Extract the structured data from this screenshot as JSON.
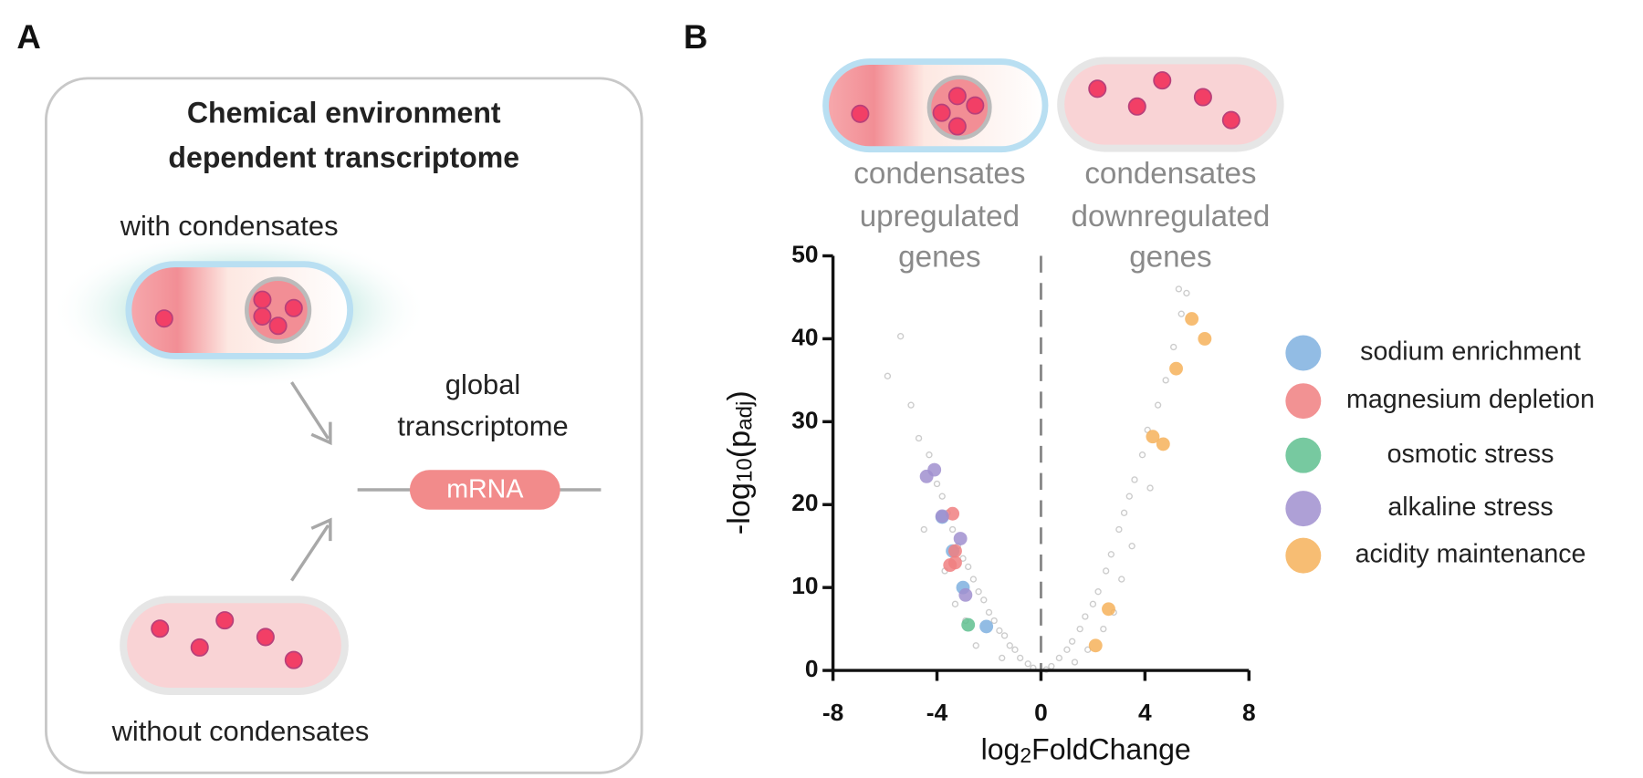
{
  "panel_a": {
    "letter": "A",
    "title": [
      "Chemical environment",
      "dependent transcriptome"
    ],
    "with_label": "with condensates",
    "without_label": "without condensates",
    "output_label": [
      "global",
      "transcriptome"
    ],
    "mrna": "mRNA"
  },
  "panel_b": {
    "letter": "B",
    "up_label": [
      "condensates",
      "upregulated",
      "genes"
    ],
    "down_label": [
      "condensates",
      "downregulated",
      "genes"
    ]
  },
  "chart_data": {
    "type": "scatter",
    "xlabel": [
      "log",
      "2",
      "FoldChange"
    ],
    "ylabel": [
      "-log",
      "10",
      "(p",
      "adj",
      ")"
    ],
    "xlim": [
      -8,
      8
    ],
    "xticks": [
      -8,
      -4,
      0,
      4,
      8
    ],
    "ylim": [
      0,
      50
    ],
    "yticks": [
      0,
      10,
      20,
      30,
      40,
      50
    ],
    "series": [
      {
        "color": "#cccccc",
        "x": [
          -0.5,
          -0.8,
          -1,
          -1.2,
          -1.4,
          -1.6,
          -1.8,
          -2,
          -2.2,
          -2.4,
          -2.6,
          -2.8,
          -3,
          -3.2,
          -3.4,
          -3.6,
          -3.8,
          -4,
          -4.3,
          -5.4,
          -5.9,
          -5,
          -4.7,
          -2.5,
          -1.5,
          -3.3,
          -2.9,
          -4.5,
          -3.7,
          -0.3,
          0.4,
          0.7,
          1,
          1.2,
          1.5,
          1.7,
          2,
          2.2,
          2.5,
          2.7,
          3,
          3.2,
          3.4,
          3.6,
          3.9,
          4.1,
          4.5,
          4.8,
          5.1,
          5.4,
          5.6,
          5.3,
          2.4,
          1.8,
          3.1,
          3.5,
          4.2,
          1.3,
          0.2,
          2.8
        ],
        "values": [
          0.8,
          1.5,
          2.5,
          3,
          4.2,
          4.8,
          6,
          7,
          8.5,
          9.5,
          11,
          12.5,
          13.5,
          15,
          17,
          19,
          21,
          22.5,
          26,
          40.3,
          35.5,
          32,
          28,
          3,
          1.5,
          8,
          6,
          17,
          12,
          0.3,
          0.5,
          1.5,
          2.5,
          3.5,
          5,
          6.5,
          8,
          9.5,
          12,
          14,
          17,
          19,
          21,
          23,
          26,
          29,
          32,
          35,
          39,
          43,
          45.5,
          46,
          5,
          2.5,
          11,
          15,
          22,
          1,
          0.1,
          7
        ]
      },
      {
        "name": "sodium enrichment",
        "color": "#7fb0df",
        "x": [
          -3.8,
          -3.4,
          -3.0,
          -2.1
        ],
        "values": [
          18.5,
          14.4,
          10.0,
          5.3
        ]
      },
      {
        "name": "magnesium depletion",
        "color": "#f07f80",
        "x": [
          -3.4,
          -3.3,
          -3.3,
          -3.5
        ],
        "values": [
          18.9,
          14.4,
          13.0,
          12.7
        ]
      },
      {
        "name": "osmotic stress",
        "color": "#5fbf8f",
        "x": [
          -2.8
        ],
        "values": [
          5.5
        ]
      },
      {
        "name": "alkaline stress",
        "color": "#a08fcf",
        "x": [
          -4.1,
          -4.4,
          -3.1,
          -2.9,
          -3.8
        ],
        "values": [
          24.2,
          23.4,
          15.9,
          9.1,
          18.6
        ]
      },
      {
        "name": "acidity maintenance",
        "color": "#f6b25a",
        "x": [
          5.8,
          6.3,
          5.2,
          4.3,
          4.7,
          2.6,
          2.1
        ],
        "values": [
          42.4,
          40.0,
          36.4,
          28.2,
          27.3,
          7.4,
          3.0
        ]
      }
    ]
  }
}
